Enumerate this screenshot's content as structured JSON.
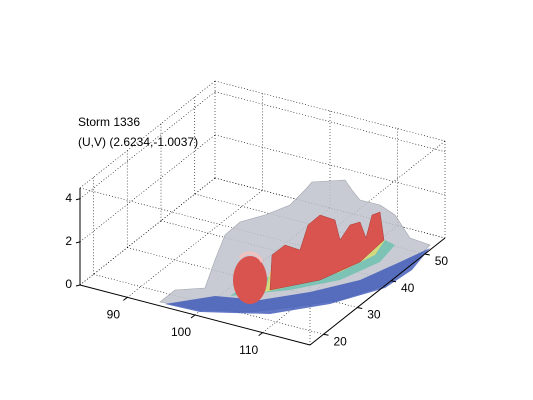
{
  "chart_data": {
    "type": "isosurface3d",
    "title": "Storm 1336",
    "subtitle": "(U,V) (2.6234,-1.0037)",
    "xlim": [
      83,
      117
    ],
    "xticks": [
      90,
      100,
      110
    ],
    "ylim": [
      16,
      56
    ],
    "yticks": [
      20,
      30,
      40,
      50
    ],
    "zlim": [
      0,
      4.5
    ],
    "zticks": [
      0,
      2,
      4
    ],
    "grid": true
  }
}
